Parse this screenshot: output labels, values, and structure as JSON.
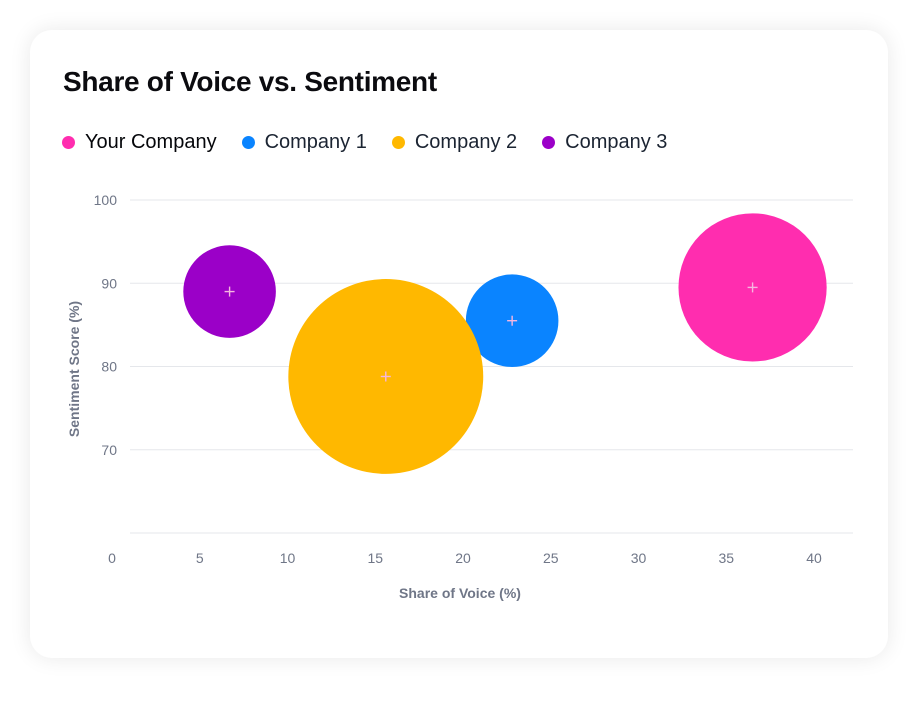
{
  "title": "Share of Voice vs. Sentiment",
  "colors": {
    "your_company": "#FF2DAF",
    "company_1": "#0A84FF",
    "company_2": "#FFB800",
    "company_3": "#9B00C8",
    "grid": "#E5E7EB",
    "tick": "#6F7687",
    "center_marker": "#F5B6E0"
  },
  "legend": [
    {
      "label": "Your Company",
      "color": "#FF2DAF"
    },
    {
      "label": "Company 1",
      "color": "#0A84FF"
    },
    {
      "label": "Company 2",
      "color": "#FFB800"
    },
    {
      "label": "Company 3",
      "color": "#9B00C8"
    }
  ],
  "chart_data": {
    "type": "scatter",
    "variant": "bubble",
    "title": "Share of Voice vs. Sentiment",
    "xlabel": "Share of Voice (%)",
    "ylabel": "Sentiment Score (%)",
    "xlim": [
      0,
      42
    ],
    "ylim": [
      60,
      100
    ],
    "xticks": [
      0,
      5,
      10,
      15,
      20,
      25,
      30,
      35,
      40
    ],
    "yticks": [
      70,
      80,
      90,
      100
    ],
    "gridlines": [
      60,
      70,
      80,
      90,
      100
    ],
    "grid": "horizontal",
    "legend_position": "top-left",
    "series": [
      {
        "name": "Your Company",
        "color": "#FF2DAF",
        "x": 36.5,
        "y": 89.5,
        "size": 36.5
      },
      {
        "name": "Company 1",
        "color": "#0A84FF",
        "x": 22.8,
        "y": 85.5,
        "size": 22.8
      },
      {
        "name": "Company 2",
        "color": "#FFB800",
        "x": 15.6,
        "y": 78.8,
        "size": 48
      },
      {
        "name": "Company 3",
        "color": "#9B00C8",
        "x": 6.7,
        "y": 89,
        "size": 22.8
      }
    ]
  }
}
